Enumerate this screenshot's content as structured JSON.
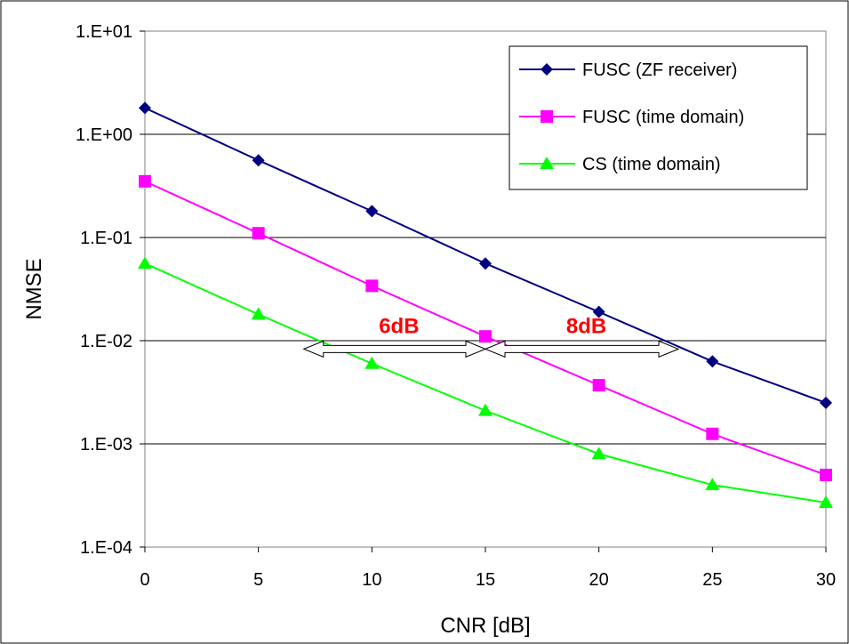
{
  "chart_data": {
    "type": "line",
    "xlabel": "CNR [dB]",
    "ylabel": "NMSE",
    "yscale": "log",
    "xlim": [
      0,
      30
    ],
    "ylim": [
      0.0001,
      10
    ],
    "x_ticks": [
      "0",
      "5",
      "10",
      "15",
      "20",
      "25",
      "30"
    ],
    "y_ticks": [
      "1.E+01",
      "1.E+00",
      "1.E-01",
      "1.E-02",
      "1.E-03",
      "1.E-04"
    ],
    "grid": "horizontal",
    "legend_position": "top-right",
    "x": [
      0,
      5,
      10,
      15,
      20,
      25,
      30
    ],
    "series": [
      {
        "name": "FUSC (ZF receiver)",
        "color": "#000080",
        "marker": "diamond",
        "values": [
          1.8,
          0.56,
          0.18,
          0.056,
          0.019,
          0.0063,
          0.0025
        ]
      },
      {
        "name": "FUSC (time domain)",
        "color": "#ff00ff",
        "marker": "square",
        "values": [
          0.35,
          0.11,
          0.034,
          0.011,
          0.0037,
          0.00125,
          0.0005
        ]
      },
      {
        "name": "CS (time domain)",
        "color": "#00ff00",
        "marker": "triangle",
        "values": [
          0.056,
          0.018,
          0.006,
          0.0021,
          0.0008,
          0.0004,
          0.00027
        ]
      }
    ],
    "annotations": [
      {
        "text": "6dB",
        "color": "#ff0000",
        "arrow_from_x": 7.0,
        "arrow_to_x": 15.0,
        "y": 0.0083
      },
      {
        "text": "8dB",
        "color": "#ff0000",
        "arrow_from_x": 15.0,
        "arrow_to_x": 23.5,
        "y": 0.0083
      }
    ]
  }
}
